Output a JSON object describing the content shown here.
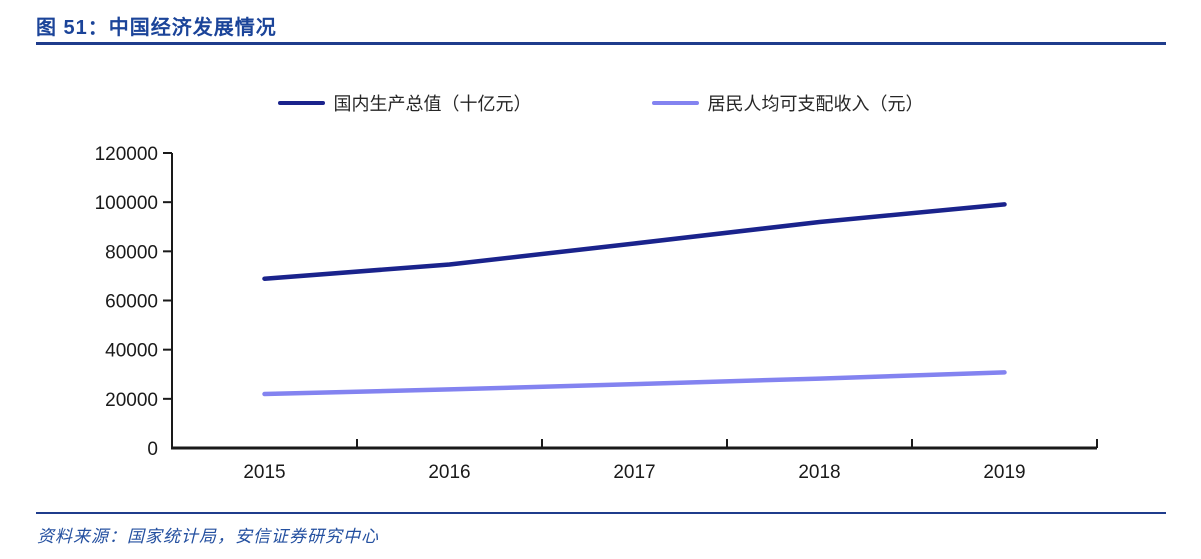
{
  "page": {
    "title": "图 51：中国经济发展情况",
    "source": "资料来源：国家统计局，安信证券研究中心"
  },
  "colors": {
    "title_blue": "#1b4499",
    "rule_blue": "#1f3c8c",
    "source_blue": "#2450a0",
    "axis": "#1a1a1a",
    "tick_label": "#1a1a1a",
    "gdp_line": "#1a238c",
    "income_line": "#8383f0"
  },
  "chart_data": {
    "type": "line",
    "title": "中国经济发展情况",
    "categories": [
      "2015",
      "2016",
      "2017",
      "2018",
      "2019"
    ],
    "series": [
      {
        "name": "国内生产总值（十亿元）",
        "color": "#1a238c",
        "values": [
          68886,
          74640,
          83204,
          91928,
          99087
        ]
      },
      {
        "name": "居民人均可支配收入（元）",
        "color": "#8383f0",
        "values": [
          21966,
          23821,
          25974,
          28228,
          30733
        ]
      }
    ],
    "y_ticks": [
      0,
      20000,
      40000,
      60000,
      80000,
      100000,
      120000
    ],
    "ylim": [
      0,
      120000
    ],
    "xlabel": "",
    "ylabel": "",
    "grid": false,
    "legend_position": "top"
  }
}
